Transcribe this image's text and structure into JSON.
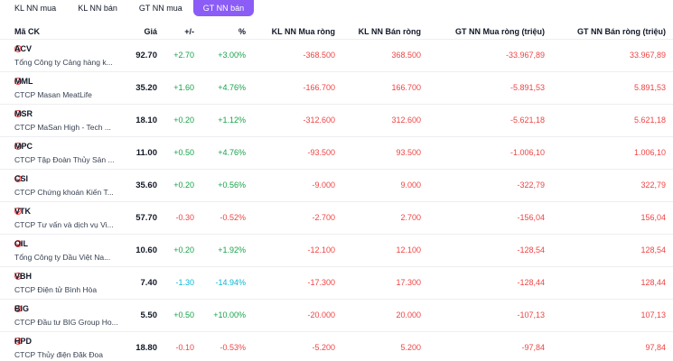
{
  "tabs": [
    {
      "label": "KL NN mua",
      "active": false
    },
    {
      "label": "KL NN bán",
      "active": false
    },
    {
      "label": "GT NN mua",
      "active": false
    },
    {
      "label": "GT NN bán",
      "active": true
    }
  ],
  "columns": {
    "ticker": "Mã CK",
    "price": "Giá",
    "change": "+/-",
    "pct": "%",
    "kl_buy": "KL NN Mua ròng",
    "kl_sell": "KL NN Bán ròng",
    "gt_buy": "GT NN Mua ròng (triệu)",
    "gt_sell": "GT NN Bán ròng (triệu)"
  },
  "colors": {
    "accent": "#8b5cf6",
    "up": "#16a34a",
    "down": "#ef4444",
    "floor": "#06b6d4"
  },
  "rows": [
    {
      "ticker": "ACV",
      "name": "Tổng Công ty Cảng hàng k...",
      "price": "92.70",
      "change": "+2.70",
      "pct": "+3.00%",
      "dir": "up",
      "kl_buy": "-368.500",
      "kl_sell": "368.500",
      "gt_buy": "-33.967,89",
      "gt_sell": "33.967,89"
    },
    {
      "ticker": "MML",
      "name": "CTCP Masan MeatLife",
      "price": "35.20",
      "change": "+1.60",
      "pct": "+4.76%",
      "dir": "up",
      "kl_buy": "-166.700",
      "kl_sell": "166.700",
      "gt_buy": "-5.891,53",
      "gt_sell": "5.891,53"
    },
    {
      "ticker": "MSR",
      "name": "CTCP MaSan High - Tech ...",
      "price": "18.10",
      "change": "+0.20",
      "pct": "+1.12%",
      "dir": "up",
      "kl_buy": "-312.600",
      "kl_sell": "312.600",
      "gt_buy": "-5.621,18",
      "gt_sell": "5.621,18"
    },
    {
      "ticker": "MPC",
      "name": "CTCP Tập Đoàn Thủy Sản ...",
      "price": "11.00",
      "change": "+0.50",
      "pct": "+4.76%",
      "dir": "up",
      "kl_buy": "-93.500",
      "kl_sell": "93.500",
      "gt_buy": "-1.006,10",
      "gt_sell": "1.006,10"
    },
    {
      "ticker": "CSI",
      "name": "CTCP Chứng khoán Kiến T...",
      "price": "35.60",
      "change": "+0.20",
      "pct": "+0.56%",
      "dir": "up",
      "kl_buy": "-9.000",
      "kl_sell": "9.000",
      "gt_buy": "-322,79",
      "gt_sell": "322,79"
    },
    {
      "ticker": "VTK",
      "name": "CTCP Tư vấn và dịch vụ Vi...",
      "price": "57.70",
      "change": "-0.30",
      "pct": "-0.52%",
      "dir": "down",
      "kl_buy": "-2.700",
      "kl_sell": "2.700",
      "gt_buy": "-156,04",
      "gt_sell": "156,04"
    },
    {
      "ticker": "OIL",
      "name": "Tổng Công ty Dầu Việt Na...",
      "price": "10.60",
      "change": "+0.20",
      "pct": "+1.92%",
      "dir": "up",
      "kl_buy": "-12.100",
      "kl_sell": "12.100",
      "gt_buy": "-128,54",
      "gt_sell": "128,54"
    },
    {
      "ticker": "VBH",
      "name": "CTCP Điện tử Bình Hòa",
      "price": "7.40",
      "change": "-1.30",
      "pct": "-14.94%",
      "dir": "floor",
      "kl_buy": "-17.300",
      "kl_sell": "17.300",
      "gt_buy": "-128,44",
      "gt_sell": "128,44"
    },
    {
      "ticker": "BIG",
      "name": "CTCP Đầu tư BIG Group Ho...",
      "price": "5.50",
      "change": "+0.50",
      "pct": "+10.00%",
      "dir": "up",
      "kl_buy": "-20.000",
      "kl_sell": "20.000",
      "gt_buy": "-107,13",
      "gt_sell": "107,13"
    },
    {
      "ticker": "HPD",
      "name": "CTCP Thủy điện Đăk Đoa",
      "price": "18.80",
      "change": "-0.10",
      "pct": "-0.53%",
      "dir": "down",
      "kl_buy": "-5.200",
      "kl_sell": "5.200",
      "gt_buy": "-97,84",
      "gt_sell": "97,84"
    }
  ]
}
